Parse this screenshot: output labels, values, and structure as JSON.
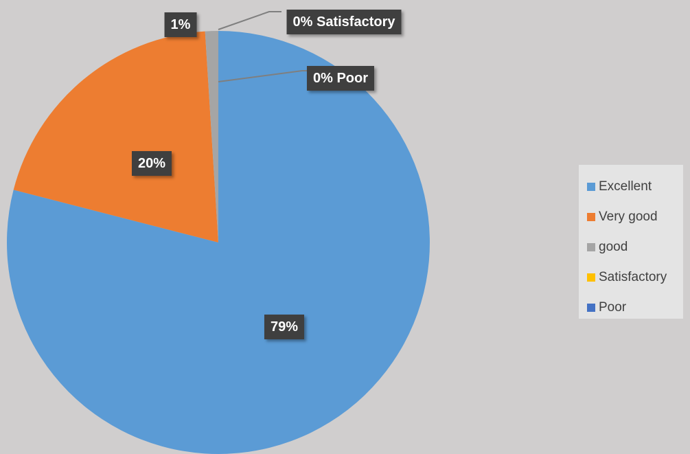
{
  "chart_data": {
    "type": "pie",
    "title": "",
    "categories": [
      "Excellent",
      "Very good",
      "good",
      "Satisfactory",
      "Poor"
    ],
    "values": [
      79,
      20,
      1,
      0,
      0
    ],
    "colors": [
      "#5b9bd5",
      "#ed7d31",
      "#a5a5a5",
      "#ffc000",
      "#4472c4"
    ],
    "data_labels": [
      "79%",
      "20%",
      "1%",
      "0% Satisfactory",
      "0% Poor"
    ],
    "legend_position": "right"
  }
}
